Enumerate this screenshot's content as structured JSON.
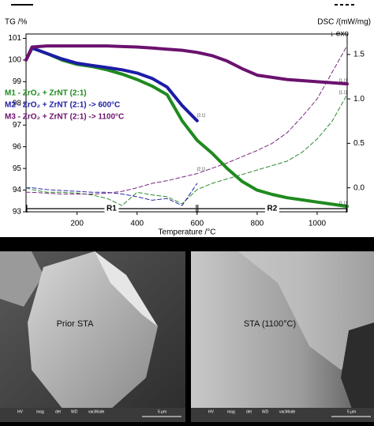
{
  "chart_data": {
    "type": "line",
    "left_axis_label": "TG /%",
    "right_axis_label": "DSC /(mW/mg)",
    "exo_label": "↓ exo",
    "x_label": "Temperature /°C",
    "x": [
      30,
      50,
      100,
      150,
      200,
      250,
      300,
      350,
      400,
      450,
      500,
      550,
      600,
      650,
      700,
      750,
      800,
      850,
      900,
      950,
      1000,
      1050,
      1100
    ],
    "xlim": [
      30,
      1100
    ],
    "xticks": [
      200,
      400,
      600,
      800,
      1000
    ],
    "ylim": [
      93,
      101.2
    ],
    "yticks": [
      93,
      94,
      95,
      96,
      97,
      98,
      99,
      100,
      101
    ],
    "y2lim": [
      -0.27,
      1.73
    ],
    "y2ticks": [
      {
        "value": 0,
        "label": "0.0"
      },
      {
        "value": 0.5,
        "label": "0.5"
      },
      {
        "value": 1,
        "label": "1.0"
      },
      {
        "value": 1.5,
        "label": "1.5"
      }
    ],
    "series": [
      {
        "name": "M1 - ZrO₂ + ZrNT (2:1)",
        "color": "#1f8a1f",
        "values": [
          100.0,
          100.55,
          100.3,
          100.0,
          99.8,
          99.7,
          99.55,
          99.35,
          99.1,
          98.8,
          98.4,
          97.2,
          96.3,
          95.7,
          95.0,
          94.4,
          94.0,
          93.8,
          93.65,
          93.55,
          93.45,
          93.35,
          93.25
        ]
      },
      {
        "name": "M2 - ZrO₂ + ZrNT (2:1) -> 600°C",
        "color": "#1c1ca6",
        "values": [
          100.0,
          100.55,
          100.3,
          100.05,
          99.85,
          99.75,
          99.65,
          99.55,
          99.4,
          99.15,
          98.75,
          97.9,
          97.2,
          null,
          null,
          null,
          null,
          null,
          null,
          null,
          null,
          null,
          null
        ]
      },
      {
        "name": "M3 - ZrO₂ + ZrNT (2:1) -> 1100°C",
        "color": "#6b126f",
        "values": [
          100.0,
          100.6,
          100.65,
          100.65,
          100.65,
          100.65,
          100.65,
          100.62,
          100.6,
          100.55,
          100.5,
          100.45,
          100.35,
          100.2,
          99.95,
          99.6,
          99.3,
          99.2,
          99.1,
          99.05,
          99.0,
          98.95,
          98.9
        ]
      },
      {
        "color": "#2e8b2e",
        "axis": "y2",
        "dash": true,
        "values": [
          0,
          -0.02,
          -0.05,
          -0.05,
          -0.06,
          -0.08,
          -0.12,
          -0.2,
          -0.05,
          -0.08,
          -0.1,
          -0.18,
          -0.02,
          0.05,
          0.1,
          0.15,
          0.2,
          0.25,
          0.3,
          0.4,
          0.55,
          0.75,
          1.05
        ]
      },
      {
        "color": "#2a2aa8",
        "axis": "y2",
        "dash": true,
        "values": [
          0,
          0,
          -0.02,
          -0.03,
          -0.04,
          -0.05,
          -0.05,
          -0.07,
          -0.1,
          -0.14,
          -0.12,
          -0.2,
          0.05,
          null,
          null,
          null,
          null,
          null,
          null,
          null,
          null,
          null,
          null
        ]
      },
      {
        "color": "#7a2a80",
        "axis": "y2",
        "dash": true,
        "values": [
          -0.05,
          -0.05,
          -0.06,
          -0.07,
          -0.07,
          -0.07,
          -0.06,
          -0.04,
          0,
          0.05,
          0.08,
          0.12,
          0.16,
          0.22,
          0.28,
          0.35,
          0.42,
          0.5,
          0.62,
          0.8,
          1.0,
          1.3,
          1.6
        ]
      }
    ],
    "annotations": [
      "[2.1]",
      "[1.1]",
      "[1.1]",
      "[2.1]",
      "[1.1]"
    ],
    "regions": [
      {
        "label": "R1",
        "range": [
          30,
          600
        ]
      },
      {
        "label": "R2",
        "range": [
          600,
          1100
        ]
      }
    ]
  },
  "panels": [
    {
      "caption": "Prior STA",
      "info": [
        "HV",
        "mag",
        "det",
        "WD",
        "vacMode",
        "5 μm"
      ]
    },
    {
      "caption": "STA (1100°C)",
      "info": [
        "HV",
        "mag",
        "det",
        "WD",
        "vacMode",
        "5 μm"
      ]
    }
  ]
}
